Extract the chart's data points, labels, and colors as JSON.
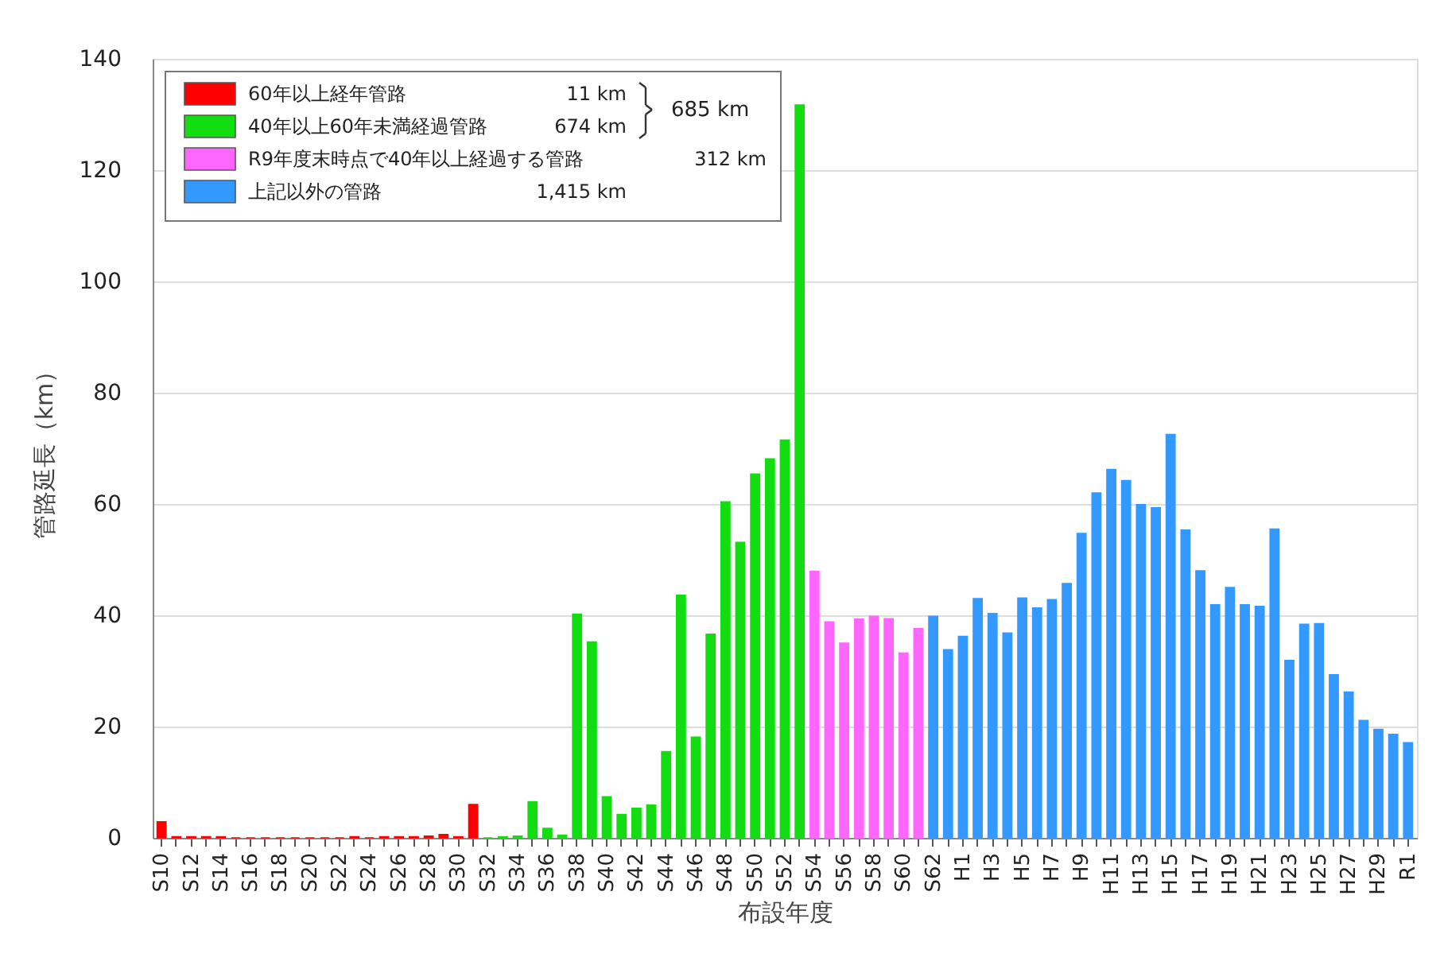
{
  "chart_data": {
    "type": "bar",
    "xlabel": "布設年度",
    "ylabel": "管路延長（km）",
    "categories": [
      "S10",
      null,
      "S12",
      null,
      "S14",
      null,
      "S16",
      null,
      "S18",
      null,
      "S20",
      null,
      "S22",
      null,
      "S24",
      null,
      "S26",
      null,
      "S28",
      null,
      "S30",
      null,
      "S32",
      null,
      "S34",
      null,
      "S36",
      null,
      "S38",
      null,
      "S40",
      null,
      "S42",
      null,
      "S44",
      null,
      "S46",
      null,
      "S48",
      null,
      "S50",
      null,
      "S52",
      null,
      "S54",
      null,
      "S56",
      null,
      "S58",
      null,
      "S60",
      null,
      "S62",
      null,
      "H1",
      null,
      "H3",
      null,
      "H5",
      null,
      "H7",
      null,
      "H9",
      null,
      "H11",
      null,
      "H13",
      null,
      "H15",
      null,
      "H17",
      null,
      "H19",
      null,
      "H21",
      null,
      "H23",
      null,
      "H25",
      null,
      "H27",
      null,
      "H29",
      null,
      "R1"
    ],
    "series": [
      {
        "name": "60年以上経年管路",
        "color": "#ff0000",
        "values": [
          2.9,
          0.2,
          0.2,
          0.2,
          0.2,
          0,
          0,
          0,
          0,
          0,
          0,
          0,
          0,
          0.2,
          0,
          0.2,
          0.2,
          0.2,
          0.3,
          0.6,
          0.2,
          6.0,
          null,
          null,
          null,
          null,
          null,
          null,
          null,
          null,
          null,
          null,
          null,
          null,
          null,
          null,
          null,
          null,
          null,
          null,
          null,
          null,
          null,
          null,
          null,
          null,
          null,
          null,
          null,
          null,
          null,
          null,
          null,
          null,
          null,
          null,
          null,
          null,
          null,
          null,
          null,
          null,
          null,
          null,
          null,
          null,
          null,
          null,
          null,
          null,
          null,
          null,
          null,
          null,
          null,
          null,
          null,
          null,
          null,
          null,
          null,
          null,
          null,
          null,
          null
        ]
      },
      {
        "name": "40年以上60年未満経過管路",
        "color": "#11dd11",
        "values": [
          null,
          null,
          null,
          null,
          null,
          null,
          null,
          null,
          null,
          null,
          null,
          null,
          null,
          null,
          null,
          null,
          null,
          null,
          null,
          null,
          null,
          null,
          0,
          0.2,
          0.3,
          6.5,
          1.7,
          0.5,
          40.2,
          35.2,
          7.4,
          4.2,
          5.3,
          5.9,
          15.5,
          43.6,
          18.1,
          36.6,
          60.4,
          53.1,
          65.4,
          68.1,
          71.5,
          131.7,
          null,
          null,
          null,
          null,
          null,
          null,
          null,
          null,
          null,
          null,
          null,
          null,
          null,
          null,
          null,
          null,
          null,
          null,
          null,
          null,
          null,
          null,
          null,
          null,
          null,
          null,
          null,
          null,
          null,
          null,
          null,
          null,
          null,
          null,
          null,
          null,
          null,
          null,
          null,
          null,
          null
        ]
      },
      {
        "name": "R9年度末時点で40年以上経過する管路",
        "color": "#ff66ff",
        "values": [
          null,
          null,
          null,
          null,
          null,
          null,
          null,
          null,
          null,
          null,
          null,
          null,
          null,
          null,
          null,
          null,
          null,
          null,
          null,
          null,
          null,
          null,
          null,
          null,
          null,
          null,
          null,
          null,
          null,
          null,
          null,
          null,
          null,
          null,
          null,
          null,
          null,
          null,
          null,
          null,
          null,
          null,
          null,
          null,
          47.9,
          38.8,
          35.0,
          39.3,
          39.8,
          39.4,
          33.2,
          37.6,
          null,
          null,
          null,
          null,
          null,
          null,
          null,
          null,
          null,
          null,
          null,
          null,
          null,
          null,
          null,
          null,
          null,
          null,
          null,
          null,
          null,
          null,
          null,
          null,
          null,
          null,
          null,
          null,
          null,
          null,
          null,
          null,
          null
        ]
      },
      {
        "name": "上記以外の管路",
        "color": "#3399ff",
        "values": [
          null,
          null,
          null,
          null,
          null,
          null,
          null,
          null,
          null,
          null,
          null,
          null,
          null,
          null,
          null,
          null,
          null,
          null,
          null,
          null,
          null,
          null,
          null,
          null,
          null,
          null,
          null,
          null,
          null,
          null,
          null,
          null,
          null,
          null,
          null,
          null,
          null,
          null,
          null,
          null,
          null,
          null,
          null,
          null,
          null,
          null,
          null,
          null,
          null,
          null,
          null,
          null,
          39.8,
          33.8,
          36.2,
          43.0,
          40.3,
          36.8,
          43.1,
          41.3,
          42.8,
          45.7,
          54.7,
          62.0,
          66.2,
          64.2,
          59.9,
          59.3,
          72.5,
          55.3,
          48.0,
          41.9,
          45.0,
          41.9,
          41.6,
          55.5,
          31.9,
          38.4,
          38.5,
          29.3,
          26.2,
          21.1,
          19.5,
          18.6,
          17.1
        ]
      }
    ],
    "annotations": [
      "11 km",
      "674 km",
      "312 km",
      "1,415 km",
      "685 km"
    ],
    "ylim": [
      0,
      140
    ],
    "yticks": [
      0,
      20,
      40,
      60,
      80,
      100,
      120,
      140
    ],
    "grid": "y",
    "legend": "top left"
  }
}
